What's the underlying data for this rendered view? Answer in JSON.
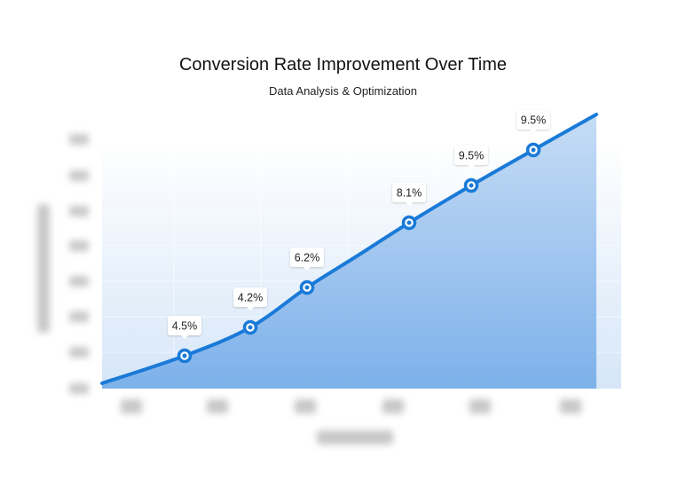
{
  "chart_data": {
    "type": "area",
    "title": "Conversion Rate Improvement Over Time",
    "subtitle": "Data Analysis & Optimization",
    "data_labels": [
      "4.5%",
      "4.2%",
      "6.2%",
      "8.1%",
      "9.5%",
      "9.5%"
    ],
    "values": [
      4.5,
      4.2,
      6.2,
      8.1,
      9.5,
      9.5
    ],
    "grid": true,
    "axis_labels_legible": false,
    "colors": {
      "line": "#1a7ad8",
      "fill_top": "#c4dbf5",
      "fill_bottom": "#7fb2ea",
      "marker_fill": "#ffffff"
    }
  }
}
